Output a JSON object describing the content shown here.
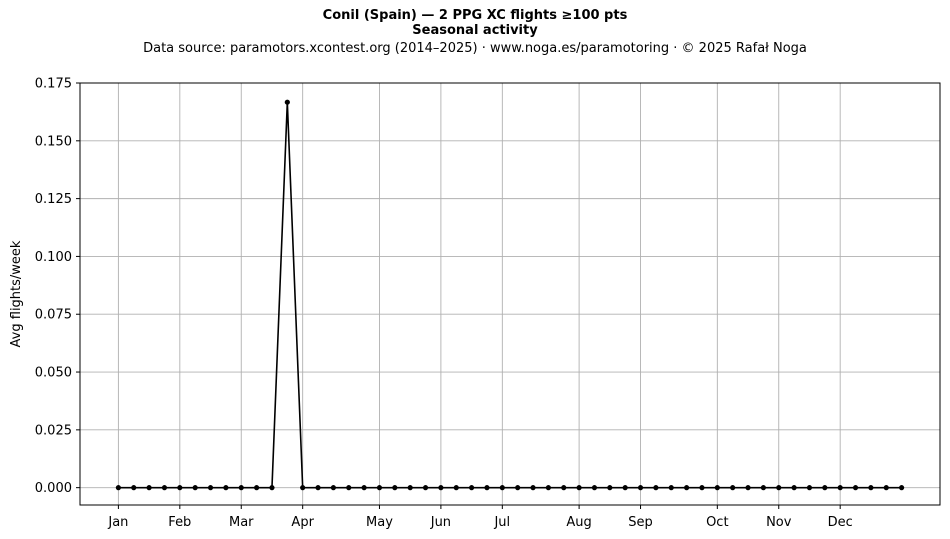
{
  "header": {
    "title": "Conil (Spain)  —  2 PPG XC flights ≥100 pts",
    "subtitle": "Seasonal activity",
    "source": "Data source: paramotors.xcontest.org (2014–2025)  ·  www.noga.es/paramotoring  ·  © 2025 Rafał Noga"
  },
  "chart_data": {
    "type": "line",
    "title": "Conil (Spain)  —  2 PPG XC flights ≥100 pts",
    "subtitle": "Seasonal activity",
    "xlabel": "",
    "ylabel": "Avg flights/week",
    "xlim": [
      0,
      56
    ],
    "ylim": [
      -0.0075,
      0.175
    ],
    "y_ticks": [
      0.0,
      0.025,
      0.05,
      0.075,
      0.1,
      0.125,
      0.15,
      0.175
    ],
    "y_tick_labels": [
      "0.000",
      "0.025",
      "0.050",
      "0.075",
      "0.100",
      "0.125",
      "0.150",
      "0.175"
    ],
    "x_ticks": [
      {
        "label": "Jan",
        "x": 2.5
      },
      {
        "label": "Feb",
        "x": 6.5
      },
      {
        "label": "Mar",
        "x": 10.5
      },
      {
        "label": "Apr",
        "x": 14.5
      },
      {
        "label": "May",
        "x": 19.5
      },
      {
        "label": "Jun",
        "x": 23.5
      },
      {
        "label": "Jul",
        "x": 27.5
      },
      {
        "label": "Aug",
        "x": 32.5
      },
      {
        "label": "Sep",
        "x": 36.5
      },
      {
        "label": "Oct",
        "x": 41.5
      },
      {
        "label": "Nov",
        "x": 45.5
      },
      {
        "label": "Dec",
        "x": 49.5
      }
    ],
    "grid": true,
    "line_color": "#000000",
    "grid_color": "#b0b0b0",
    "series": [
      {
        "x": [
          2.5,
          3.5,
          4.5,
          5.5,
          6.5,
          7.5,
          8.5,
          9.5,
          10.5,
          11.5,
          12.5,
          13.5,
          14.5,
          15.5,
          16.5,
          17.5,
          18.5,
          19.5,
          20.5,
          21.5,
          22.5,
          23.5,
          24.5,
          25.5,
          26.5,
          27.5,
          28.5,
          29.5,
          30.5,
          31.5,
          32.5,
          33.5,
          34.5,
          35.5,
          36.5,
          37.5,
          38.5,
          39.5,
          40.5,
          41.5,
          42.5,
          43.5,
          44.5,
          45.5,
          46.5,
          47.5,
          48.5,
          49.5,
          50.5,
          51.5,
          52.5,
          53.5
        ],
        "y": [
          0,
          0,
          0,
          0,
          0,
          0,
          0,
          0,
          0,
          0,
          0,
          0.1667,
          0,
          0,
          0,
          0,
          0,
          0,
          0,
          0,
          0,
          0,
          0,
          0,
          0,
          0,
          0,
          0,
          0,
          0,
          0,
          0,
          0,
          0,
          0,
          0,
          0,
          0,
          0,
          0,
          0,
          0,
          0,
          0,
          0,
          0,
          0,
          0,
          0,
          0,
          0,
          0
        ]
      }
    ]
  }
}
